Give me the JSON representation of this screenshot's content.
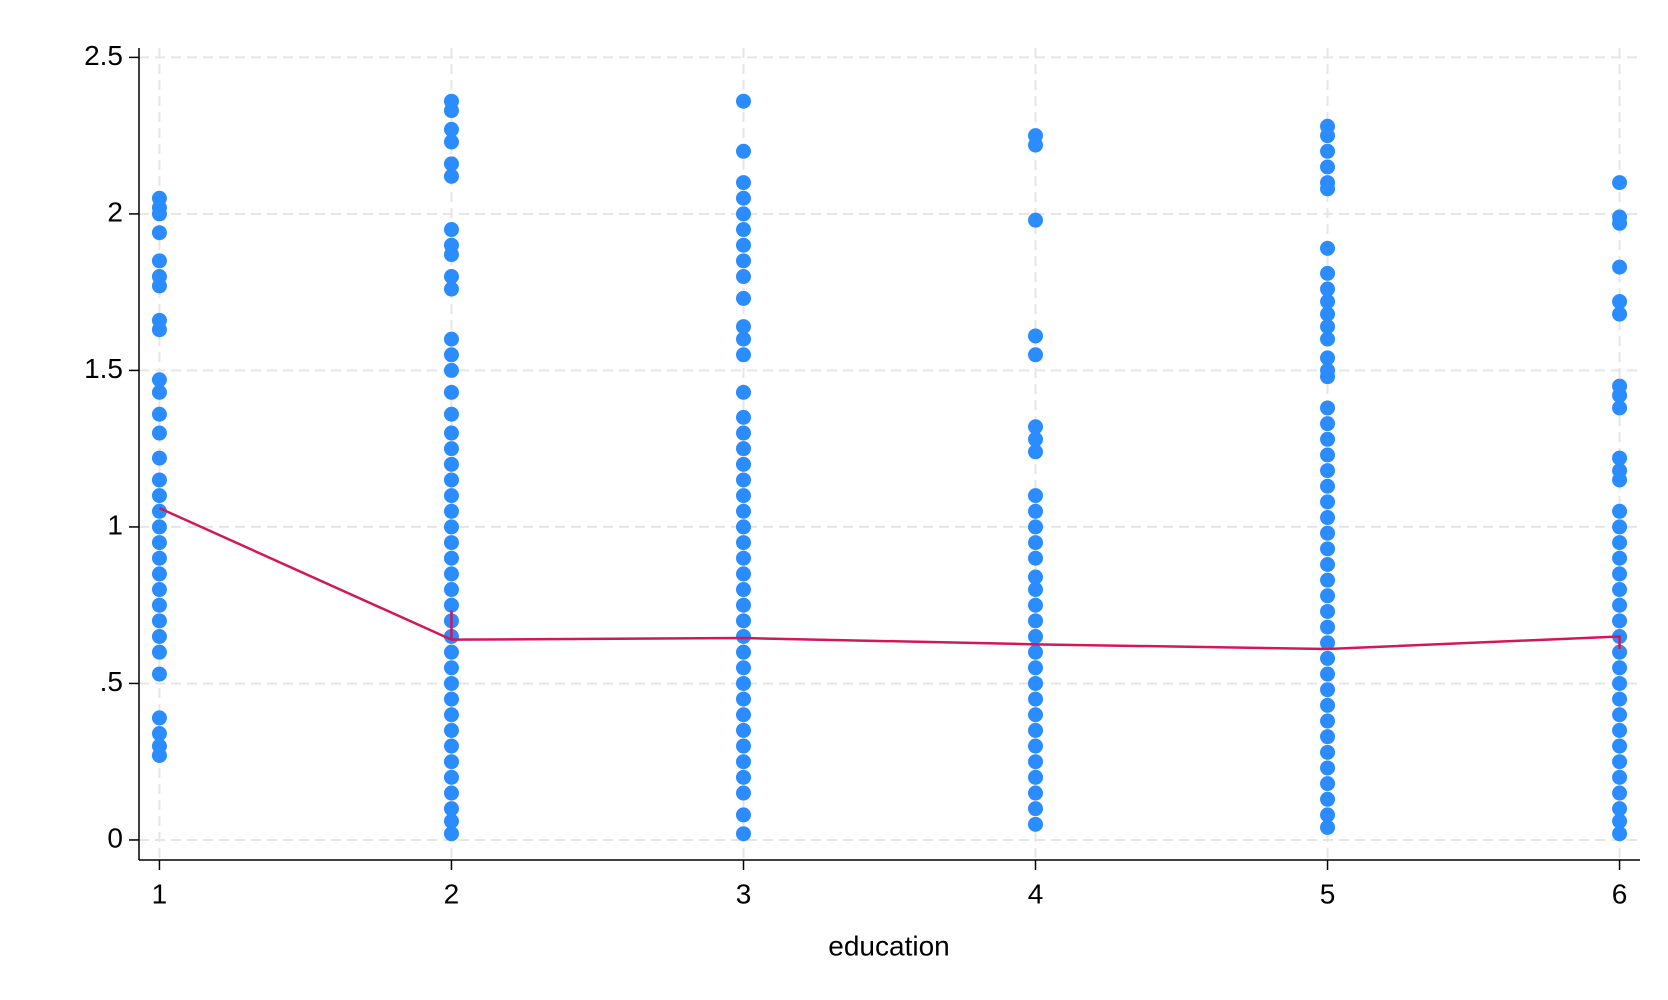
{
  "chart_data": {
    "type": "scatter",
    "xlabel": "education",
    "xlim": [
      0.93,
      6.07
    ],
    "ylim": [
      -0.064,
      2.53
    ],
    "xticks": [
      1,
      2,
      3,
      4,
      5,
      6
    ],
    "yticks": [
      0,
      {
        "value": 0.5,
        "label": ".5"
      },
      1,
      1.5,
      2,
      2.5
    ],
    "grid": true,
    "series": [
      {
        "type": "scatter",
        "color": "#2a8cff",
        "x": [
          1,
          1,
          1,
          1,
          1,
          1,
          1,
          1,
          1,
          1,
          1,
          1,
          1,
          1,
          1,
          1,
          1,
          1,
          1,
          1,
          1,
          1,
          1,
          1,
          1,
          1,
          1,
          1,
          1,
          1,
          1,
          2,
          2,
          2,
          2,
          2,
          2,
          2,
          2,
          2,
          2,
          2,
          2,
          2,
          2,
          2,
          2,
          2,
          2,
          2,
          2,
          2,
          2,
          2,
          2,
          2,
          2,
          2,
          2,
          2,
          2,
          2,
          2,
          2,
          2,
          2,
          2,
          2,
          2,
          2,
          2,
          2,
          2,
          2,
          3,
          3,
          3,
          3,
          3,
          3,
          3,
          3,
          3,
          3,
          3,
          3,
          3,
          3,
          3,
          3,
          3,
          3,
          3,
          3,
          3,
          3,
          3,
          3,
          3,
          3,
          3,
          3,
          3,
          3,
          3,
          3,
          3,
          3,
          3,
          3,
          3,
          3,
          3,
          3,
          3,
          4,
          4,
          4,
          4,
          4,
          4,
          4,
          4,
          4,
          4,
          4,
          4,
          4,
          4,
          4,
          4,
          4,
          4,
          4,
          4,
          4,
          4,
          4,
          4,
          4,
          4,
          4,
          4,
          4,
          4,
          5,
          5,
          5,
          5,
          5,
          5,
          5,
          5,
          5,
          5,
          5,
          5,
          5,
          5,
          5,
          5,
          5,
          5,
          5,
          5,
          5,
          5,
          5,
          5,
          5,
          5,
          5,
          5,
          5,
          5,
          5,
          5,
          5,
          5,
          5,
          5,
          5,
          5,
          5,
          5,
          5,
          5,
          5,
          5,
          6,
          6,
          6,
          6,
          6,
          6,
          6,
          6,
          6,
          6,
          6,
          6,
          6,
          6,
          6,
          6,
          6,
          6,
          6,
          6,
          6,
          6,
          6,
          6,
          6,
          6,
          6,
          6,
          6,
          6,
          6,
          6,
          6,
          6
        ],
        "values": [
          2.05,
          2.02,
          2.0,
          1.94,
          1.85,
          1.8,
          1.77,
          1.66,
          1.63,
          1.47,
          1.43,
          1.36,
          1.3,
          1.22,
          1.15,
          1.1,
          1.05,
          1.0,
          0.95,
          0.9,
          0.85,
          0.8,
          0.75,
          0.7,
          0.65,
          0.6,
          0.53,
          0.39,
          0.34,
          0.3,
          0.27,
          2.36,
          2.33,
          2.27,
          2.23,
          2.16,
          2.12,
          1.95,
          1.9,
          1.87,
          1.8,
          1.76,
          1.6,
          1.55,
          1.5,
          1.43,
          1.36,
          1.3,
          1.25,
          1.2,
          1.15,
          1.1,
          1.05,
          1.0,
          0.95,
          0.9,
          0.85,
          0.8,
          0.75,
          0.7,
          0.65,
          0.6,
          0.55,
          0.5,
          0.45,
          0.4,
          0.35,
          0.3,
          0.25,
          0.2,
          0.15,
          0.1,
          0.06,
          0.02,
          2.36,
          2.2,
          2.1,
          2.05,
          2.0,
          1.95,
          1.9,
          1.85,
          1.8,
          1.73,
          1.64,
          1.6,
          1.55,
          1.43,
          1.35,
          1.3,
          1.25,
          1.2,
          1.15,
          1.1,
          1.05,
          1.0,
          0.95,
          0.9,
          0.85,
          0.8,
          0.75,
          0.7,
          0.65,
          0.6,
          0.55,
          0.5,
          0.45,
          0.4,
          0.35,
          0.3,
          0.25,
          0.2,
          0.15,
          0.08,
          0.02,
          2.25,
          2.22,
          1.98,
          1.61,
          1.55,
          1.32,
          1.28,
          1.24,
          1.1,
          1.05,
          1.0,
          0.95,
          0.9,
          0.84,
          0.8,
          0.75,
          0.7,
          0.65,
          0.6,
          0.55,
          0.5,
          0.45,
          0.4,
          0.35,
          0.3,
          0.25,
          0.2,
          0.15,
          0.1,
          0.05,
          2.28,
          2.25,
          2.2,
          2.15,
          2.1,
          2.08,
          1.89,
          1.81,
          1.76,
          1.72,
          1.68,
          1.64,
          1.6,
          1.54,
          1.5,
          1.48,
          1.38,
          1.33,
          1.28,
          1.23,
          1.18,
          1.13,
          1.08,
          1.03,
          0.98,
          0.93,
          0.88,
          0.83,
          0.78,
          0.73,
          0.68,
          0.63,
          0.58,
          0.53,
          0.48,
          0.43,
          0.38,
          0.33,
          0.28,
          0.23,
          0.18,
          0.13,
          0.08,
          0.04,
          2.1,
          1.99,
          1.97,
          1.83,
          1.72,
          1.68,
          1.45,
          1.42,
          1.38,
          1.22,
          1.18,
          1.15,
          1.05,
          1.0,
          0.95,
          0.9,
          0.85,
          0.8,
          0.75,
          0.7,
          0.65,
          0.6,
          0.55,
          0.5,
          0.45,
          0.4,
          0.35,
          0.3,
          0.25,
          0.2,
          0.15,
          0.1,
          0.06,
          0.02
        ]
      },
      {
        "type": "line",
        "color": "#d2185a",
        "x": [
          1,
          2,
          2,
          2,
          3,
          4,
          5,
          6,
          6
        ],
        "values": [
          1.06,
          0.64,
          0.73,
          0.64,
          0.645,
          0.625,
          0.61,
          0.65,
          0.61
        ]
      }
    ]
  }
}
